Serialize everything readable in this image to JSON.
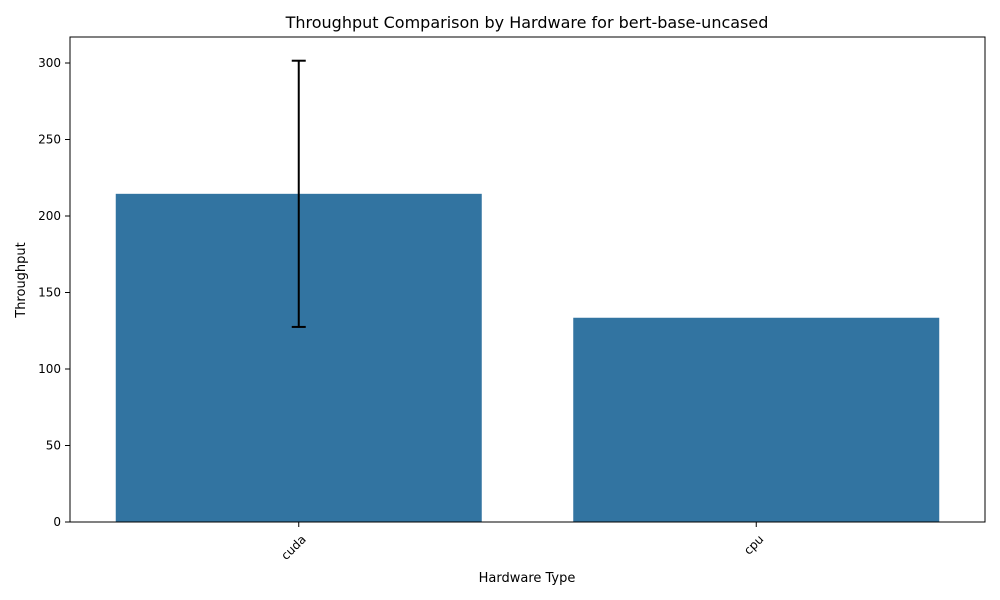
{
  "chart_data": {
    "type": "bar",
    "title": "Throughput Comparison by Hardware for bert-base-uncased",
    "xlabel": "Hardware Type",
    "ylabel": "Throughput",
    "categories": [
      "cuda",
      "cpu"
    ],
    "values": [
      214.5,
      133.5
    ],
    "error_bars": [
      {
        "category": "cuda",
        "low": 127.5,
        "high": 301.5
      },
      null
    ],
    "ylim": [
      0,
      317
    ],
    "yticks": [
      0,
      50,
      100,
      150,
      200,
      250,
      300
    ],
    "x_tick_rotation_deg": 45,
    "grid": false,
    "bar_color": "#3274a1",
    "error_bar_color": "#000000"
  }
}
